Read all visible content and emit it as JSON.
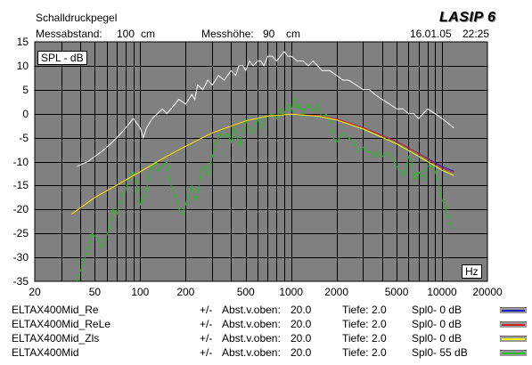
{
  "header": {
    "title": "Schalldruckpegel",
    "distance_label": "Messabstand:",
    "distance_value": "100",
    "distance_unit": "cm",
    "height_label": "Messhöhe:",
    "height_value": "90",
    "height_unit": "cm",
    "date": "16.01.05",
    "time": "22:25",
    "logo": "LASIP 6"
  },
  "badges": {
    "ylabel": "SPL - dB",
    "xlabel": "Hz"
  },
  "legend": [
    {
      "name": "ELTAX400Mid_Re",
      "pm": "+/-",
      "abst_label": "Abst.v.oben:",
      "abst": "20.0",
      "tiefe_label": "Tiefe:",
      "tiefe": "2.0",
      "spl0": "Spl0- 0 dB",
      "color": "#2020c0"
    },
    {
      "name": "ELTAX400Mid_ReLe",
      "pm": "+/-",
      "abst_label": "Abst.v.oben:",
      "abst": "20.0",
      "tiefe_label": "Tiefe:",
      "tiefe": "2.0",
      "spl0": "Spl0- 0 dB",
      "color": "#d02020"
    },
    {
      "name": "ELTAX400Mid_Zls",
      "pm": "+/-",
      "abst_label": "Abst.v.oben:",
      "abst": "20.0",
      "tiefe_label": "Tiefe:",
      "tiefe": "2.0",
      "spl0": "Spl0- 0 dB",
      "color": "#ffff00"
    },
    {
      "name": "ELTAX400Mid",
      "pm": "+/-",
      "abst_label": "Abst.v.oben:",
      "abst": "20.0",
      "tiefe_label": "Tiefe:",
      "tiefe": "2.0",
      "spl0": "Spl0- 55 dB",
      "color": "#20c020"
    }
  ],
  "chart_data": {
    "type": "line",
    "x_scale": "log",
    "xlim": [
      20,
      20000
    ],
    "ylim": [
      -35,
      15
    ],
    "x_ticks": [
      "20",
      "50",
      "100",
      "200",
      "500",
      "1000",
      "2000",
      "5000",
      "10000",
      "20000"
    ],
    "y_ticks": [
      "15",
      "10",
      "5",
      "0",
      "-5",
      "-10",
      "-15",
      "-20",
      "-25",
      "-30",
      "-35"
    ],
    "grid": true,
    "plot_background": "#808080",
    "series": [
      {
        "name": "ELTAX400Mid_Re",
        "color": "#2020c0",
        "x": [
          35,
          50,
          70,
          100,
          150,
          200,
          300,
          500,
          700,
          1000,
          1500,
          2000,
          3000,
          5000,
          7000,
          10000,
          12000
        ],
        "y": [
          -21,
          -17.5,
          -14.9,
          -12.1,
          -8.9,
          -6.8,
          -4.0,
          -1.5,
          -0.5,
          -0.1,
          -0.4,
          -1.1,
          -2.9,
          -5.8,
          -8.3,
          -11.0,
          -12.0
        ]
      },
      {
        "name": "ELTAX400Mid_ReLe",
        "color": "#d02020",
        "x": [
          35,
          50,
          70,
          100,
          150,
          200,
          300,
          500,
          700,
          1000,
          1500,
          2000,
          3000,
          5000,
          7000,
          10000,
          12000
        ],
        "y": [
          -21,
          -17.5,
          -14.9,
          -12.1,
          -8.9,
          -6.8,
          -4.0,
          -1.5,
          -0.5,
          -0.1,
          -0.4,
          -1.1,
          -2.9,
          -5.8,
          -8.3,
          -11.3,
          -12.3
        ]
      },
      {
        "name": "ELTAX400Mid_Zls",
        "color": "#ffff00",
        "x": [
          35,
          50,
          70,
          100,
          150,
          200,
          300,
          500,
          700,
          1000,
          1500,
          2000,
          3000,
          5000,
          7000,
          10000,
          12000
        ],
        "y": [
          -21,
          -17.5,
          -14.9,
          -12.1,
          -8.9,
          -6.8,
          -4.0,
          -1.5,
          -0.5,
          -0.1,
          -0.5,
          -1.3,
          -3.2,
          -6.3,
          -8.9,
          -11.8,
          -12.9
        ]
      },
      {
        "name": "ELTAX400Mid",
        "color": "#20c020",
        "x": [
          38,
          42,
          45,
          48,
          52,
          55,
          58,
          62,
          66,
          70,
          75,
          80,
          85,
          90,
          95,
          100,
          105,
          110,
          115,
          120,
          125,
          130,
          140,
          150,
          160,
          170,
          180,
          190,
          200,
          210,
          220,
          230,
          240,
          250,
          260,
          270,
          280,
          300,
          320,
          340,
          360,
          380,
          400,
          420,
          440,
          460,
          480,
          500,
          520,
          550,
          580,
          600,
          630,
          660,
          700,
          750,
          800,
          850,
          900,
          950,
          1000,
          1050,
          1100,
          1150,
          1200,
          1300,
          1400,
          1500,
          1600,
          1700,
          1800,
          1900,
          2000,
          2200,
          2400,
          2600,
          2800,
          3000,
          3200,
          3400,
          3600,
          3800,
          4000,
          4300,
          4600,
          5000,
          5300,
          5600,
          6000,
          6300,
          6600,
          7000,
          7500,
          8000,
          8500,
          9000,
          9500,
          10000,
          10500,
          11000,
          11500
        ],
        "y": [
          -35,
          -31,
          -28,
          -25,
          -26,
          -28,
          -27,
          -24,
          -20,
          -21,
          -17,
          -16,
          -13,
          -12,
          -15,
          -19,
          -18,
          -16,
          -12,
          -11,
          -10,
          -12,
          -11,
          -10,
          -15,
          -17,
          -20,
          -21,
          -19,
          -16,
          -15,
          -18,
          -17,
          -13,
          -11,
          -11,
          -13,
          -9,
          -6,
          -4,
          -5,
          -4,
          -6,
          -3,
          -5,
          -7,
          -3,
          -1,
          -3,
          -4,
          -2,
          -1,
          -3,
          -1.5,
          -0.5,
          0,
          -1,
          1,
          0,
          2,
          0.5,
          3,
          1,
          2,
          0,
          2,
          0.5,
          2,
          -1,
          0,
          -1,
          -5,
          -6,
          -4,
          -5,
          -6,
          -8,
          -7,
          -8,
          -8,
          -9,
          -8,
          -9,
          -8,
          -9,
          -11,
          -12,
          -13,
          -9,
          -10,
          -14,
          -12,
          -14,
          -11,
          -11,
          -12,
          -15,
          -18,
          -19,
          -22,
          -24
        ]
      },
      {
        "name": "white curve",
        "color": "#ffffff",
        "x": [
          38,
          45,
          55,
          60,
          65,
          70,
          75,
          80,
          90,
          100,
          105,
          110,
          120,
          130,
          140,
          150,
          170,
          180,
          200,
          220,
          230,
          240,
          260,
          280,
          300,
          330,
          360,
          400,
          430,
          450,
          480,
          500,
          530,
          560,
          600,
          630,
          660,
          700,
          750,
          800,
          850,
          900,
          950,
          1000,
          1100,
          1200,
          1300,
          1400,
          1500,
          1600,
          1700,
          1800,
          2000,
          2200,
          2400,
          2700,
          3000,
          3300,
          3600,
          4000,
          4500,
          5000,
          5500,
          6000,
          6500,
          7000,
          7500,
          8000,
          9000,
          10000,
          11000,
          12000
        ],
        "y": [
          -11,
          -10,
          -8,
          -7,
          -6,
          -5,
          -4,
          -3,
          -1,
          -3,
          -5,
          -3,
          -1,
          0,
          1,
          0,
          2,
          3,
          2,
          4,
          3,
          6,
          5,
          7,
          6,
          8,
          7,
          9,
          8,
          10,
          10,
          9,
          11,
          10,
          11,
          11,
          10,
          12,
          12,
          11,
          12,
          13,
          12,
          12,
          11,
          11,
          10,
          11,
          10,
          9,
          9,
          9,
          8,
          7,
          7,
          6,
          5,
          5,
          4,
          3,
          2,
          1,
          1,
          0,
          0,
          -1,
          0,
          1,
          0,
          -1,
          -2,
          -3
        ]
      }
    ]
  }
}
